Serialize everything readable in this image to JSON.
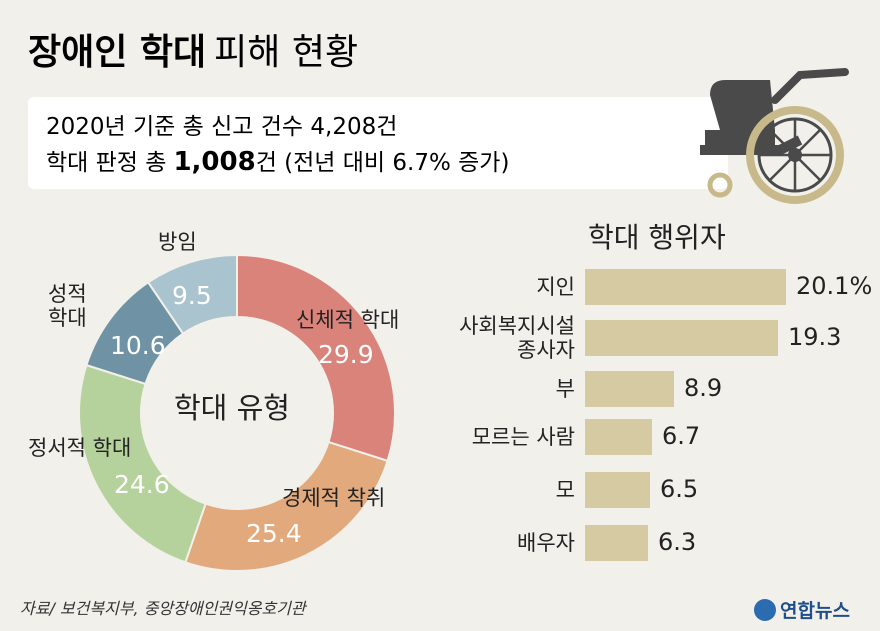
{
  "header": {
    "title_bold": "장애인 학대",
    "title_rest": "피해 현황",
    "line1": "2020년 기준 총 신고 건수 4,208건",
    "line2_pre": "학대 판정 총",
    "line2_bold": "1,008",
    "line2_post": "건 (전년 대비 6.7% 증가)"
  },
  "chart_data": [
    {
      "type": "pie",
      "center_label": "학대 유형",
      "categories": [
        "신체적 학대",
        "경제적 착취",
        "정서적 학대",
        "성적\n학대",
        "방임"
      ],
      "values": [
        29.9,
        25.4,
        24.6,
        10.6,
        9.5
      ],
      "colors": [
        "#d9837b",
        "#e2a97c",
        "#b6d29c",
        "#6f93a5",
        "#a9c4ce"
      ]
    },
    {
      "type": "bar",
      "title": "학대 행위자",
      "categories": [
        "지인",
        "사회복지시설\n종사자",
        "부",
        "모르는 사람",
        "모",
        "배우자"
      ],
      "values": [
        20.1,
        19.3,
        8.9,
        6.7,
        6.5,
        6.3
      ],
      "value_labels": [
        "20.1%",
        "19.3",
        "8.9",
        "6.7",
        "6.5",
        "6.3"
      ],
      "color": "#d6caa2"
    }
  ],
  "source": "자료/ 보건복지부, 중앙장애인권익옹호기관",
  "logo": "연합뉴스"
}
